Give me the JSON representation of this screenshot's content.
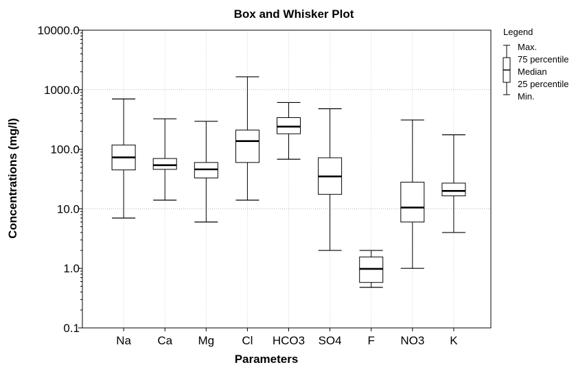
{
  "chart_data": {
    "type": "box",
    "title": "Box and Whisker Plot",
    "xlabel": "Parameters",
    "ylabel": "Concentrations (mg/l)",
    "yscale": "log",
    "ylim": [
      0.1,
      10000
    ],
    "y_ticks": [
      "0.1",
      "1.0",
      "10.0",
      "100.0",
      "1000.0",
      "10000.0"
    ],
    "grid": "major y and x, dotted",
    "legend_position": "top-right",
    "categories": [
      "Na",
      "Ca",
      "Mg",
      "Cl",
      "HCO3",
      "SO4",
      "F",
      "NO3",
      "K"
    ],
    "boxes": [
      {
        "name": "Na",
        "min": 7,
        "q1": 45,
        "median": 73,
        "q3": 118,
        "max": 700
      },
      {
        "name": "Ca",
        "min": 14,
        "q1": 46,
        "median": 54,
        "q3": 70,
        "max": 325
      },
      {
        "name": "Mg",
        "min": 6,
        "q1": 33,
        "median": 46,
        "q3": 60,
        "max": 295
      },
      {
        "name": "Cl",
        "min": 14,
        "q1": 60,
        "median": 137,
        "q3": 210,
        "max": 1650
      },
      {
        "name": "HCO3",
        "min": 68,
        "q1": 182,
        "median": 240,
        "q3": 340,
        "max": 610
      },
      {
        "name": "SO4",
        "min": 2,
        "q1": 17.5,
        "median": 35,
        "q3": 72,
        "max": 480
      },
      {
        "name": "F",
        "min": 0.48,
        "q1": 0.58,
        "median": 0.98,
        "q3": 1.55,
        "max": 2.0
      },
      {
        "name": "NO3",
        "min": 1,
        "q1": 6,
        "median": 10.5,
        "q3": 28,
        "max": 310
      },
      {
        "name": "K",
        "min": 4,
        "q1": 16.5,
        "median": 20,
        "q3": 27,
        "max": 175
      }
    ],
    "legend": {
      "title": "Legend",
      "entries": [
        "Max.",
        "75 percentile",
        "Median",
        "25 percentile",
        "Min."
      ]
    }
  }
}
